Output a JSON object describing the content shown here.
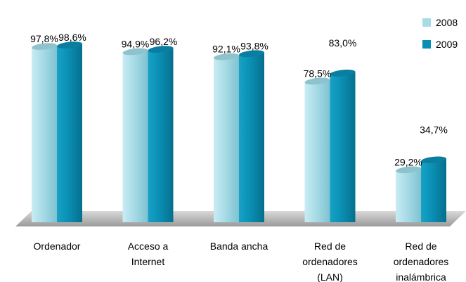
{
  "chart_data": {
    "type": "bar",
    "categories": [
      [
        "Ordenador"
      ],
      [
        "Acceso a",
        "Internet"
      ],
      [
        "Banda ancha"
      ],
      [
        "Red de",
        "ordenadores",
        "(LAN)"
      ],
      [
        "Red de",
        "ordenadores",
        "inalámbrica"
      ]
    ],
    "series": [
      {
        "name": "2008",
        "values": [
          97.8,
          94.9,
          92.1,
          78.5,
          29.2
        ],
        "labels": [
          "97,8%",
          "94,9%",
          "92,1%",
          "78,5%",
          "29,2%"
        ],
        "color": "#a9dbe6"
      },
      {
        "name": "2009",
        "values": [
          98.6,
          96.2,
          93.8,
          83.0,
          34.7
        ],
        "labels": [
          "98,6%",
          "96,2%",
          "93,8%",
          "83,0%",
          "34,7%"
        ],
        "color": "#0a8fb4"
      }
    ],
    "ylim": [
      0,
      100
    ],
    "legend": "top-right",
    "grid": false
  }
}
